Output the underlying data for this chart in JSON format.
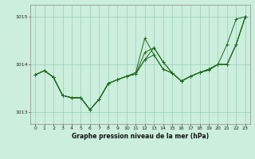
{
  "title": "Graphe pression niveau de la mer (hPa)",
  "bg_color": "#cceedd",
  "grid_color": "#99ccbb",
  "line_color": "#1a6b1a",
  "xlim": [
    -0.5,
    23.5
  ],
  "ylim": [
    1012.75,
    1015.25
  ],
  "yticks": [
    1013,
    1014,
    1015
  ],
  "xticks": [
    0,
    1,
    2,
    3,
    4,
    5,
    6,
    7,
    8,
    9,
    10,
    11,
    12,
    13,
    14,
    15,
    16,
    17,
    18,
    19,
    20,
    21,
    22,
    23
  ],
  "series": [
    [
      1013.78,
      1013.87,
      1013.73,
      1013.35,
      1013.3,
      1013.3,
      1013.05,
      1013.27,
      1013.6,
      1013.68,
      1013.75,
      1013.8,
      1014.1,
      1014.2,
      1013.9,
      1013.82,
      1013.65,
      1013.75,
      1013.83,
      1013.88,
      1014.0,
      1014.0,
      1014.42,
      1015.0
    ],
    [
      1013.78,
      1013.87,
      1013.73,
      1013.35,
      1013.3,
      1013.3,
      1013.05,
      1013.27,
      1013.6,
      1013.68,
      1013.75,
      1013.83,
      1014.55,
      1014.2,
      1013.9,
      1013.82,
      1013.65,
      1013.75,
      1013.83,
      1013.88,
      1014.0,
      1014.0,
      1014.42,
      1015.0
    ],
    [
      1013.78,
      1013.87,
      1013.73,
      1013.35,
      1013.3,
      1013.3,
      1013.05,
      1013.27,
      1013.6,
      1013.68,
      1013.75,
      1013.8,
      1014.25,
      1014.35,
      1014.05,
      1013.82,
      1013.65,
      1013.75,
      1013.83,
      1013.9,
      1014.0,
      1014.0,
      1014.42,
      1015.0
    ],
    [
      1013.78,
      1013.87,
      1013.73,
      1013.35,
      1013.3,
      1013.3,
      1013.05,
      1013.27,
      1013.6,
      1013.68,
      1013.75,
      1013.8,
      1014.1,
      1014.35,
      1014.05,
      1013.82,
      1013.65,
      1013.75,
      1013.83,
      1013.9,
      1014.0,
      1014.42,
      1014.95,
      1015.0
    ]
  ]
}
